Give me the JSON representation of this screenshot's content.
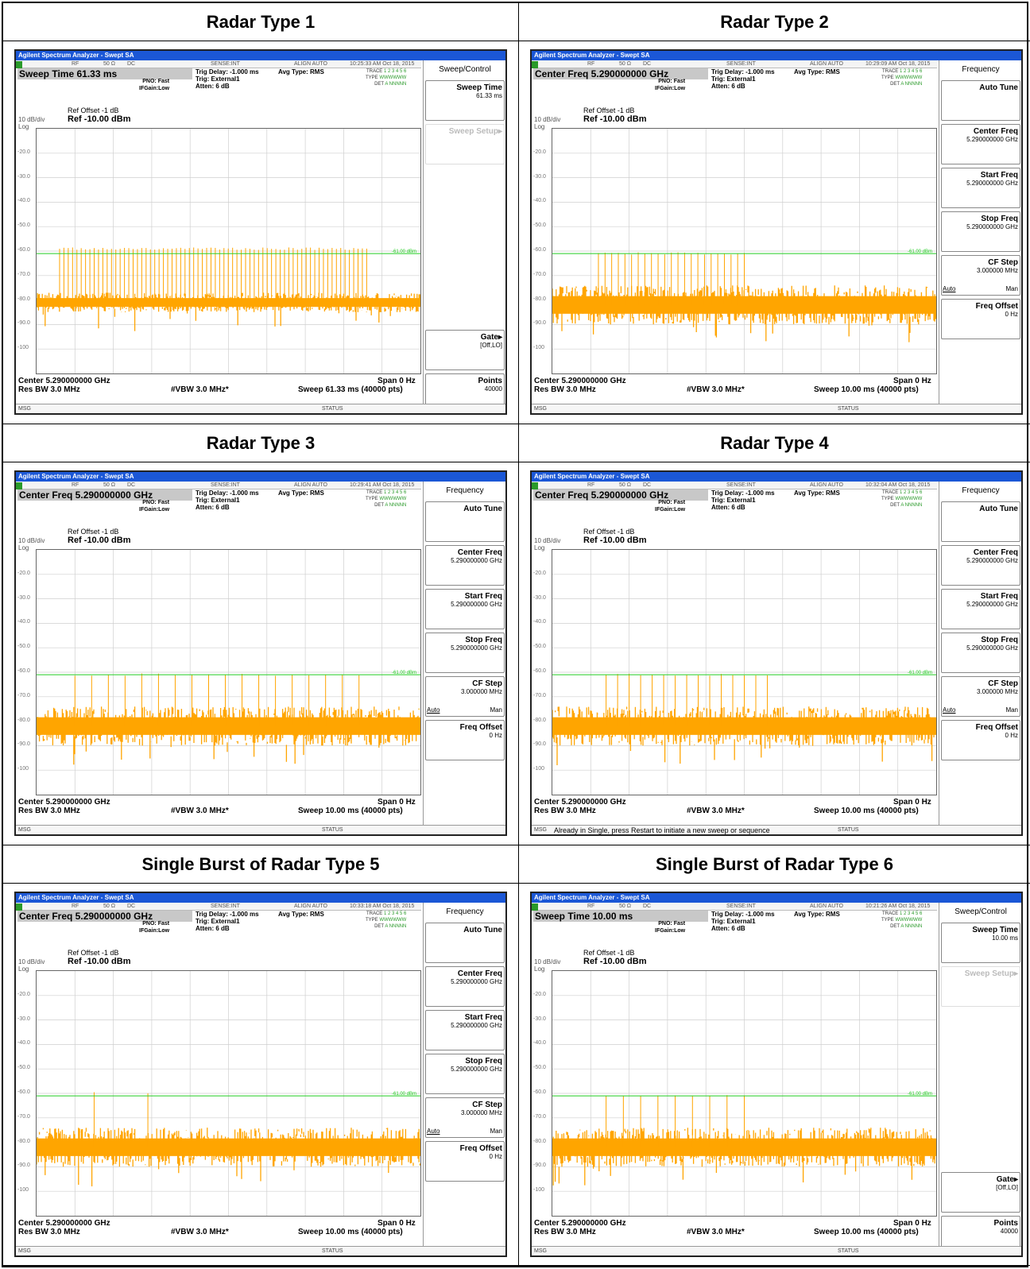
{
  "panels": [
    {
      "heading": "Radar Type 1",
      "title_bar": "Agilent Spectrum Analyzer - Swept SA",
      "highlight": "Sweep Time 61.33 ms",
      "timestamp": "10:25:33 AM Oct 18, 2015",
      "sweep": "Sweep  61.33 ms (40000 pts)",
      "menu": "Sweep/Control",
      "msg_text": "",
      "softkeys": [
        {
          "label": "Sweep Time",
          "sub": "61.33 ms",
          "dim": false
        },
        {
          "label": "Sweep Setup▸",
          "sub": "",
          "dim": true
        },
        {
          "label": "",
          "sub": "",
          "dim": false,
          "blank": true
        },
        {
          "label": "",
          "sub": "",
          "dim": false,
          "blank": true
        },
        {
          "label": "",
          "sub": "",
          "dim": false,
          "blank": true
        },
        {
          "label": "",
          "sub": "",
          "dim": false,
          "blank": true
        },
        {
          "label": "Gate▸",
          "sub": "[Off,LO]",
          "dim": false
        },
        {
          "label": "Points",
          "sub": "40000",
          "dim": false
        }
      ],
      "trace": {
        "pulses": 72,
        "pulse_start": 0.06,
        "pulse_end": 0.86,
        "pulse_level": -59,
        "noise_center": -81,
        "noise_spread": 4
      }
    },
    {
      "heading": "Radar Type 2",
      "title_bar": "Agilent Spectrum Analyzer - Swept SA",
      "highlight": "Center Freq 5.290000000 GHz",
      "timestamp": "10:29:09 AM Oct 18, 2015",
      "sweep": "Sweep  10.00 ms (40000 pts)",
      "menu": "Frequency",
      "msg_text": "",
      "softkeys": [
        {
          "label": "Auto Tune",
          "sub": "",
          "dim": false
        },
        {
          "label": "Center Freq",
          "sub": "5.290000000 GHz",
          "dim": false
        },
        {
          "label": "Start Freq",
          "sub": "5.290000000 GHz",
          "dim": false
        },
        {
          "label": "Stop Freq",
          "sub": "5.290000000 GHz",
          "dim": false
        },
        {
          "label": "CF Step",
          "sub": "3.000000 MHz",
          "dim": false,
          "automan": true
        },
        {
          "label": "Freq Offset",
          "sub": "0 Hz",
          "dim": false
        }
      ],
      "trace": {
        "pulses": 23,
        "pulse_start": 0.12,
        "pulse_end": 0.5,
        "pulse_level": -61,
        "noise_center": -82,
        "noise_spread": 8
      }
    },
    {
      "heading": "Radar Type 3",
      "title_bar": "Agilent Spectrum Analyzer - Swept SA",
      "highlight": "Center Freq 5.290000000 GHz",
      "timestamp": "10:29:41 AM Oct 18, 2015",
      "sweep": "Sweep  10.00 ms (40000 pts)",
      "menu": "Frequency",
      "msg_text": "",
      "softkeys": [
        {
          "label": "Auto Tune",
          "sub": "",
          "dim": false
        },
        {
          "label": "Center Freq",
          "sub": "5.290000000 GHz",
          "dim": false
        },
        {
          "label": "Start Freq",
          "sub": "5.290000000 GHz",
          "dim": false
        },
        {
          "label": "Stop Freq",
          "sub": "5.290000000 GHz",
          "dim": false
        },
        {
          "label": "CF Step",
          "sub": "3.000000 MHz",
          "dim": false,
          "automan": true
        },
        {
          "label": "Freq Offset",
          "sub": "0 Hz",
          "dim": false
        }
      ],
      "trace": {
        "pulses": 18,
        "pulse_start": 0.1,
        "pulse_end": 0.84,
        "pulse_level": -61,
        "noise_center": -82,
        "noise_spread": 8
      }
    },
    {
      "heading": "Radar Type 4",
      "title_bar": "Agilent Spectrum Analyzer - Swept SA",
      "highlight": "Center Freq 5.290000000 GHz",
      "timestamp": "10:32:04 AM Oct 18, 2015",
      "sweep": "Sweep  10.00 ms (40000 pts)",
      "menu": "Frequency",
      "msg_text": "Already in Single, press Restart to initiate a new sweep or sequence",
      "softkeys": [
        {
          "label": "Auto Tune",
          "sub": "",
          "dim": false
        },
        {
          "label": "Center Freq",
          "sub": "5.290000000 GHz",
          "dim": false
        },
        {
          "label": "Start Freq",
          "sub": "5.290000000 GHz",
          "dim": false
        },
        {
          "label": "Stop Freq",
          "sub": "5.290000000 GHz",
          "dim": false
        },
        {
          "label": "CF Step",
          "sub": "3.000000 MHz",
          "dim": false,
          "automan": true
        },
        {
          "label": "Freq Offset",
          "sub": "0 Hz",
          "dim": false
        }
      ],
      "trace": {
        "pulses": 15,
        "pulse_start": 0.14,
        "pulse_end": 0.56,
        "pulse_level": -61,
        "noise_center": -82,
        "noise_spread": 8
      }
    },
    {
      "heading": "Single Burst of Radar Type 5",
      "title_bar": "Agilent Spectrum Analyzer - Swept SA",
      "highlight": "Center Freq 5.290000000 GHz",
      "timestamp": "10:33:18 AM Oct 18, 2015",
      "sweep": "Sweep  10.00 ms (40000 pts)",
      "menu": "Frequency",
      "msg_text": "",
      "softkeys": [
        {
          "label": "Auto Tune",
          "sub": "",
          "dim": false
        },
        {
          "label": "Center Freq",
          "sub": "5.290000000 GHz",
          "dim": false
        },
        {
          "label": "Start Freq",
          "sub": "5.290000000 GHz",
          "dim": false
        },
        {
          "label": "Stop Freq",
          "sub": "5.290000000 GHz",
          "dim": false
        },
        {
          "label": "CF Step",
          "sub": "3.000000 MHz",
          "dim": false,
          "automan": true
        },
        {
          "label": "Freq Offset",
          "sub": "0 Hz",
          "dim": false
        }
      ],
      "trace": {
        "pulses": 2,
        "pulse_start": 0.15,
        "pulse_end": 0.29,
        "pulse_level": -60,
        "noise_center": -82,
        "noise_spread": 8
      }
    },
    {
      "heading": "Single Burst of Radar Type 6",
      "title_bar": "Agilent Spectrum Analyzer - Swept SA",
      "highlight": "Sweep Time 10.00 ms",
      "timestamp": "10:21:26 AM Oct 18, 2015",
      "sweep": "Sweep  10.00 ms (40000 pts)",
      "menu": "Sweep/Control",
      "msg_text": "",
      "softkeys": [
        {
          "label": "Sweep Time",
          "sub": "10.00 ms",
          "dim": false
        },
        {
          "label": "Sweep Setup▸",
          "sub": "",
          "dim": true
        },
        {
          "label": "",
          "sub": "",
          "dim": false,
          "blank": true
        },
        {
          "label": "",
          "sub": "",
          "dim": false,
          "blank": true
        },
        {
          "label": "",
          "sub": "",
          "dim": false,
          "blank": true
        },
        {
          "label": "",
          "sub": "",
          "dim": false,
          "blank": true
        },
        {
          "label": "Gate▸",
          "sub": "[Off,LO]",
          "dim": false
        },
        {
          "label": "Points",
          "sub": "40000",
          "dim": false
        }
      ],
      "trace": {
        "pulses": 9,
        "pulse_start": 0.14,
        "pulse_end": 0.5,
        "pulse_level": -61,
        "noise_center": -82,
        "noise_spread": 8
      }
    }
  ],
  "common": {
    "pno": "PNO: Fast",
    "ifgain": "IFGain:Low",
    "trig_delay": "Trig Delay: -1.000 ms",
    "trig": "Trig: External1",
    "atten": "Atten: 6 dB",
    "avg_type": "Avg Type: RMS",
    "trace_label": "TRACE",
    "trace_digits": "1 2 3 4 5 6",
    "type_label": "TYPE",
    "type_value": "WWWWWW",
    "det_label": "DET",
    "det_value": "A NNNNN",
    "rf": "RF",
    "ohm": "50 Ω",
    "dc": "DC",
    "sense": "SENSE:INT",
    "align": "ALIGN AUTO",
    "ref_offset": "Ref Offset -1 dB",
    "ref_level": "Ref -10.00 dBm",
    "scale": "10 dB/div",
    "log": "Log",
    "center": "Center 5.290000000 GHz",
    "res_bw": "Res BW 3.0 MHz",
    "vbw": "#VBW 3.0 MHz*",
    "span": "Span 0 Hz",
    "msg": "MSG",
    "status": "STATUS",
    "threshold_label": "-61.00 dBm",
    "auto": "Auto",
    "man": "Man",
    "y_ticks": [
      "-20.0",
      "-30.0",
      "-40.0",
      "-50.0",
      "-60.0",
      "-70.0",
      "-80.0",
      "-90.0",
      "-100"
    ],
    "threshold_color": "#22cc22",
    "trace_color": "#ffa500"
  }
}
